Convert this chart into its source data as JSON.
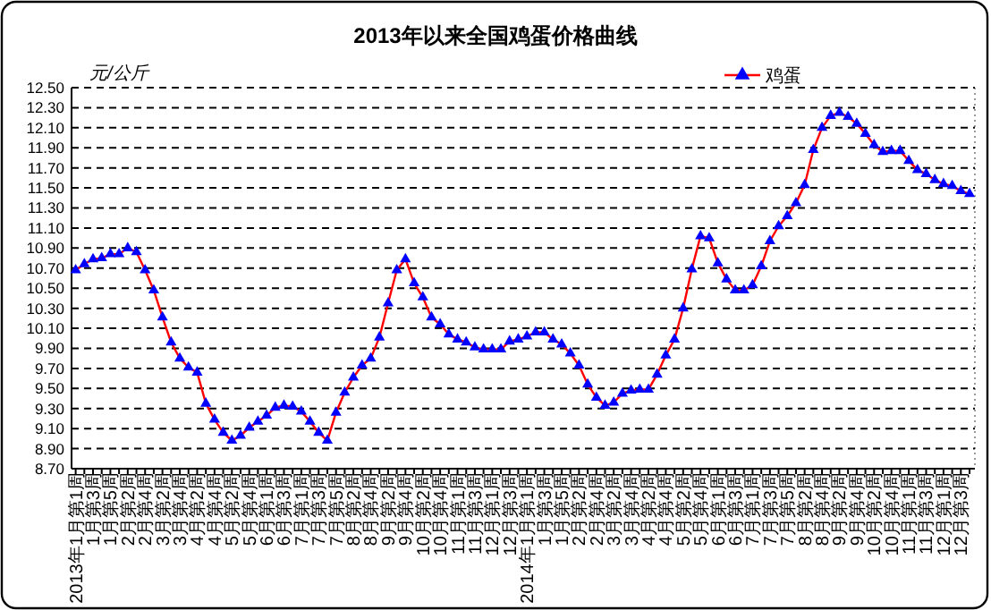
{
  "chart_data": {
    "type": "line",
    "title": "2013年以来全国鸡蛋价格曲线",
    "ylabel": "元/公斤",
    "categories": [
      "2013年1月第1周",
      null,
      "1月第3周",
      null,
      "1月第5周",
      null,
      "2月第2周",
      null,
      "2月第4周",
      null,
      "3月第2周",
      null,
      "3月第4周",
      null,
      "4月第2周",
      null,
      "4月第4周",
      null,
      "5月第2周",
      null,
      "5月第4周",
      null,
      "6月第1周",
      null,
      "6月第3周",
      null,
      "7月第1周",
      null,
      "7月第3周",
      null,
      "7月第5周",
      null,
      "8月第2周",
      null,
      "8月第4周",
      null,
      "9月第2周",
      null,
      "9月第4周",
      null,
      "10月第2周",
      null,
      "10月第4周",
      null,
      "11月第1周",
      null,
      "11月第3周",
      null,
      "12月第1周",
      null,
      "12月第3周",
      null,
      "2014年1月第1周",
      null,
      "1月第3周",
      null,
      "1月第5周",
      null,
      "2月第2周",
      null,
      "2月第4周",
      null,
      "3月第2周",
      null,
      "3月第4周",
      null,
      "4月第2周",
      null,
      "4月第4周",
      null,
      "5月第2周",
      null,
      "5月第4周",
      null,
      "6月第1周",
      null,
      "6月第3周",
      null,
      "7月第1周",
      null,
      "7月第3周",
      null,
      "7月第5周",
      null,
      "8月第2周",
      null,
      "8月第4周",
      null,
      "9月第2周",
      null,
      "9月第4周",
      null,
      "10月第2周",
      null,
      "10月第4周",
      null,
      "11月第1周",
      null,
      "11月第3周",
      null,
      "12月第1周",
      null,
      "12月第3周",
      null
    ],
    "series": [
      {
        "name": "鸡蛋",
        "color": "#0000ff",
        "values": [
          10.68,
          10.74,
          10.79,
          10.8,
          10.84,
          10.84,
          10.9,
          10.86,
          10.68,
          10.48,
          10.21,
          9.96,
          9.8,
          9.71,
          9.66,
          9.35,
          9.19,
          9.06,
          8.98,
          9.03,
          9.11,
          9.17,
          9.23,
          9.31,
          9.33,
          9.32,
          9.27,
          9.17,
          9.06,
          8.98,
          9.26,
          9.46,
          9.61,
          9.73,
          9.8,
          10.01,
          10.35,
          10.68,
          10.79,
          10.55,
          10.41,
          10.21,
          10.14,
          10.04,
          9.99,
          9.96,
          9.91,
          9.89,
          9.89,
          9.89,
          9.97,
          9.99,
          10.02,
          10.06,
          10.06,
          9.99,
          9.94,
          9.85,
          9.73,
          9.54,
          9.41,
          9.33,
          9.36,
          9.45,
          9.48,
          9.49,
          9.49,
          9.64,
          9.83,
          9.99,
          10.3,
          10.69,
          11.02,
          11.0,
          10.75,
          10.59,
          10.48,
          10.48,
          10.53,
          10.72,
          10.97,
          11.12,
          11.22,
          11.35,
          11.53,
          11.88,
          12.1,
          12.22,
          12.25,
          12.21,
          12.14,
          12.04,
          11.93,
          11.86,
          11.87,
          11.87,
          11.77,
          11.68,
          11.64,
          11.58,
          11.54,
          11.52,
          11.47,
          11.44
        ]
      }
    ],
    "ylim": [
      8.7,
      12.5
    ],
    "yticks": [
      {
        "value": 8.7,
        "label": "8.70"
      },
      {
        "value": 8.9,
        "label": "8.90"
      },
      {
        "value": 9.1,
        "label": "9.10"
      },
      {
        "value": 9.3,
        "label": "9.30"
      },
      {
        "value": 9.5,
        "label": "9.50"
      },
      {
        "value": 9.7,
        "label": "9.70"
      },
      {
        "value": 9.9,
        "label": "9.90"
      },
      {
        "value": 10.1,
        "label": "10.10"
      },
      {
        "value": 10.3,
        "label": "10.30"
      },
      {
        "value": 10.5,
        "label": "10.50"
      },
      {
        "value": 10.7,
        "label": "10.70"
      },
      {
        "value": 10.9,
        "label": "10.90"
      },
      {
        "value": 11.1,
        "label": "11.10"
      },
      {
        "value": 11.3,
        "label": "11.30"
      },
      {
        "value": 11.5,
        "label": "11.50"
      },
      {
        "value": 11.7,
        "label": "11.70"
      },
      {
        "value": 11.9,
        "label": "11.90"
      },
      {
        "value": 12.1,
        "label": "12.10"
      },
      {
        "value": 12.3,
        "label": "12.30"
      },
      {
        "value": 12.5,
        "label": "12.50"
      }
    ],
    "grid": "y",
    "legend": "top right",
    "marker": "triangle",
    "line_style": "solid"
  }
}
